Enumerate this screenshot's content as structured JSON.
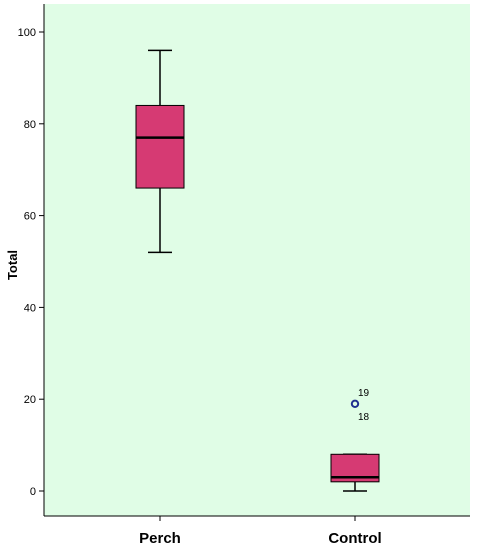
{
  "chart_data": {
    "type": "boxplot",
    "ylabel": "Total",
    "xlabel": "",
    "ylim": [
      -5,
      105
    ],
    "yticks": [
      0,
      20,
      40,
      60,
      80,
      100
    ],
    "grid": false,
    "colors": {
      "plot_background": "#e0fde6",
      "box_fill": "#d63a73",
      "outlier_stroke": "#1f2f8f",
      "axis": "#000000"
    },
    "categories": [
      "Perch",
      "Control"
    ],
    "boxes": [
      {
        "category": "Perch",
        "whisker_low": 52,
        "q1": 66,
        "median": 77,
        "q3": 84,
        "whisker_high": 96,
        "outliers": []
      },
      {
        "category": "Control",
        "whisker_low": 0,
        "q1": 2,
        "median": 3,
        "q3": 8,
        "whisker_high": 8,
        "outliers": [
          {
            "value": 19,
            "labels": [
              "19",
              "18"
            ]
          }
        ]
      }
    ]
  }
}
